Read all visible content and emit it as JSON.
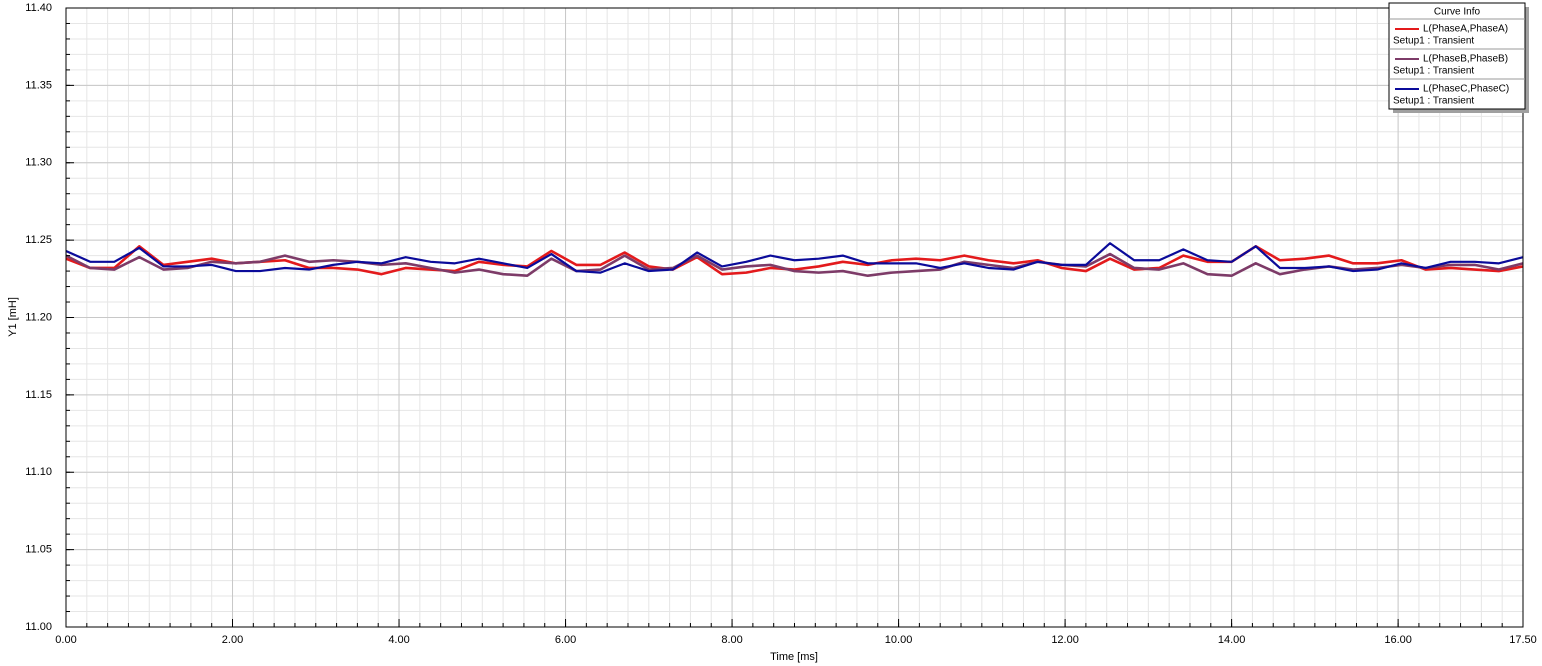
{
  "chart_data": {
    "type": "line",
    "x_label": "Time [ms]",
    "y_label": "Y1 [mH]",
    "legend_title": "Curve Info",
    "legend_position": "upper right",
    "grid": true,
    "xlim": [
      0,
      17.5
    ],
    "ylim": [
      11.0,
      11.4
    ],
    "xticks": [
      {
        "value": 0,
        "label": "0.00"
      },
      {
        "value": 2,
        "label": "2.00"
      },
      {
        "value": 4,
        "label": "4.00"
      },
      {
        "value": 6,
        "label": "6.00"
      },
      {
        "value": 8,
        "label": "8.00"
      },
      {
        "value": 10,
        "label": "10.00"
      },
      {
        "value": 12,
        "label": "12.00"
      },
      {
        "value": 14,
        "label": "14.00"
      },
      {
        "value": 16,
        "label": "16.00"
      },
      {
        "value": 17.5,
        "label": "17.50"
      }
    ],
    "yticks": [
      {
        "value": 11.0,
        "label": "11.00"
      },
      {
        "value": 11.05,
        "label": "11.05"
      },
      {
        "value": 11.1,
        "label": "11.10"
      },
      {
        "value": 11.15,
        "label": "11.15"
      },
      {
        "value": 11.2,
        "label": "11.20"
      },
      {
        "value": 11.25,
        "label": "11.25"
      },
      {
        "value": 11.3,
        "label": "11.30"
      },
      {
        "value": 11.35,
        "label": "11.35"
      },
      {
        "value": 11.4,
        "label": "11.40"
      }
    ],
    "x": [
      0,
      0.29,
      0.58,
      0.88,
      1.17,
      1.46,
      1.75,
      2.04,
      2.33,
      2.63,
      2.92,
      3.21,
      3.5,
      3.79,
      4.08,
      4.38,
      4.67,
      4.96,
      5.25,
      5.54,
      5.83,
      6.13,
      6.42,
      6.71,
      7.0,
      7.29,
      7.58,
      7.88,
      8.17,
      8.46,
      8.75,
      9.04,
      9.33,
      9.63,
      9.92,
      10.21,
      10.5,
      10.79,
      11.08,
      11.38,
      11.67,
      11.96,
      12.25,
      12.54,
      12.83,
      13.13,
      13.42,
      13.71,
      14.0,
      14.29,
      14.58,
      14.88,
      15.17,
      15.46,
      15.75,
      16.04,
      16.33,
      16.63,
      16.92,
      17.21,
      17.5
    ],
    "series": [
      {
        "name": "L(PhaseA,PhaseA)",
        "setup": "Setup1 : Transient",
        "color": "#e31a1c",
        "width": 2.6,
        "values": [
          11.238,
          11.232,
          11.232,
          11.246,
          11.234,
          11.236,
          11.238,
          11.235,
          11.236,
          11.237,
          11.232,
          11.232,
          11.231,
          11.228,
          11.232,
          11.231,
          11.23,
          11.236,
          11.234,
          11.233,
          11.243,
          11.234,
          11.234,
          11.242,
          11.233,
          11.231,
          11.239,
          11.228,
          11.229,
          11.232,
          11.231,
          11.233,
          11.236,
          11.234,
          11.237,
          11.238,
          11.237,
          11.24,
          11.237,
          11.235,
          11.237,
          11.232,
          11.23,
          11.238,
          11.231,
          11.232,
          11.24,
          11.236,
          11.236,
          11.246,
          11.237,
          11.238,
          11.24,
          11.235,
          11.235,
          11.237,
          11.231,
          11.232,
          11.231,
          11.23,
          11.233
        ]
      },
      {
        "name": "L(PhaseB,PhaseB)",
        "setup": "Setup1 : Transient",
        "color": "#7d3b68",
        "width": 2.6,
        "values": [
          11.24,
          11.232,
          11.231,
          11.239,
          11.231,
          11.232,
          11.236,
          11.235,
          11.236,
          11.24,
          11.236,
          11.237,
          11.236,
          11.234,
          11.235,
          11.232,
          11.229,
          11.231,
          11.228,
          11.227,
          11.238,
          11.23,
          11.231,
          11.24,
          11.231,
          11.232,
          11.24,
          11.231,
          11.233,
          11.234,
          11.23,
          11.229,
          11.23,
          11.227,
          11.229,
          11.23,
          11.231,
          11.236,
          11.234,
          11.232,
          11.236,
          11.234,
          11.233,
          11.241,
          11.232,
          11.231,
          11.235,
          11.228,
          11.227,
          11.235,
          11.228,
          11.231,
          11.233,
          11.231,
          11.232,
          11.234,
          11.232,
          11.234,
          11.234,
          11.231,
          11.235
        ]
      },
      {
        "name": "L(PhaseC,PhaseC)",
        "setup": "Setup1 : Transient",
        "color": "#0b0b9a",
        "width": 2.2,
        "values": [
          11.243,
          11.236,
          11.236,
          11.245,
          11.233,
          11.233,
          11.234,
          11.23,
          11.23,
          11.232,
          11.231,
          11.234,
          11.236,
          11.235,
          11.239,
          11.236,
          11.235,
          11.238,
          11.235,
          11.232,
          11.241,
          11.23,
          11.229,
          11.235,
          11.23,
          11.231,
          11.242,
          11.233,
          11.236,
          11.24,
          11.237,
          11.238,
          11.24,
          11.235,
          11.235,
          11.235,
          11.232,
          11.235,
          11.232,
          11.231,
          11.236,
          11.234,
          11.234,
          11.248,
          11.237,
          11.237,
          11.244,
          11.237,
          11.236,
          11.246,
          11.232,
          11.232,
          11.233,
          11.23,
          11.231,
          11.235,
          11.232,
          11.236,
          11.236,
          11.235,
          11.239
        ]
      }
    ]
  }
}
